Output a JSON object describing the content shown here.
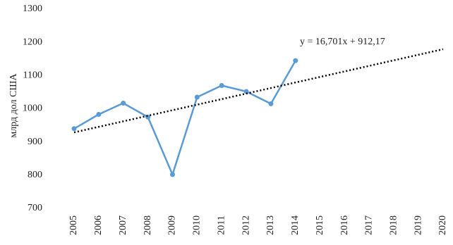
{
  "chart_data": {
    "type": "line",
    "y_axis_label": "млрд дол США",
    "categories": [
      "2005",
      "2006",
      "2007",
      "2008",
      "2009",
      "2010",
      "2011",
      "2012",
      "2013",
      "2014",
      "2015",
      "2016",
      "2017",
      "2018",
      "2019",
      "2020"
    ],
    "series": [
      {
        "color": "#5b9bd5",
        "values": [
          940,
          983,
          1017,
          975,
          802,
          1035,
          1070,
          1052,
          1015,
          1145,
          null,
          null,
          null,
          null,
          null,
          null
        ]
      }
    ],
    "trendline": {
      "slope": 16.701,
      "intercept": 912.17,
      "label": "y = 16,701x + 912,17",
      "color": "#000000"
    },
    "ylim": [
      700,
      1300
    ],
    "yticks": [
      700,
      800,
      900,
      1000,
      1100,
      1200,
      1300
    ],
    "grid": false
  }
}
